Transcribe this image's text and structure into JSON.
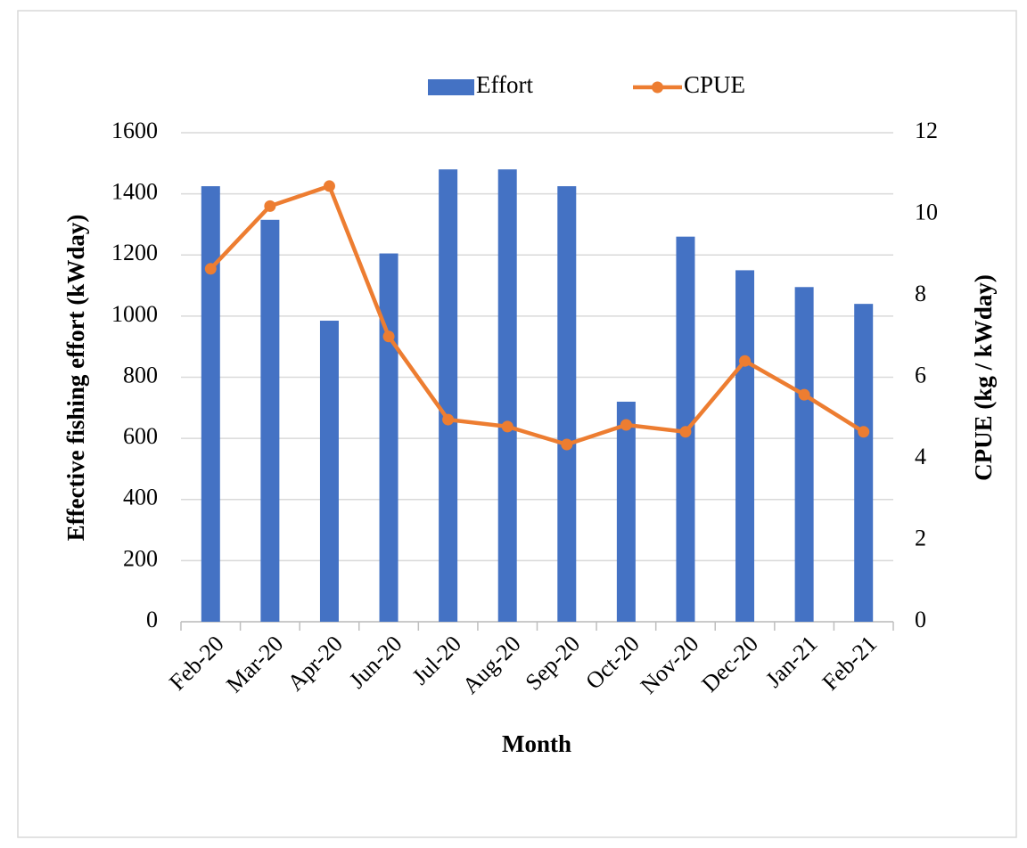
{
  "chart_data": {
    "type": "bar",
    "x_label": "Month",
    "y_label": "Effective fishing effort (kWday)",
    "y2_label": "CPUE (kg / kWday)",
    "categories": [
      "Feb-20",
      "Mar-20",
      "Apr-20",
      "Jun-20",
      "Jul-20",
      "Aug-20",
      "Sep-20",
      "Oct-20",
      "Nov-20",
      "Dec-20",
      "Jan-21",
      "Feb-21"
    ],
    "series": [
      {
        "name": "Effort",
        "type": "bar",
        "color": "#4472c4",
        "values": [
          1425,
          1315,
          985,
          1205,
          1480,
          1480,
          1425,
          720,
          1260,
          1150,
          1095,
          1040
        ]
      },
      {
        "name": "CPUE",
        "type": "line",
        "axis": "y2",
        "color": "#ed7d31",
        "values": [
          8.66,
          10.2,
          10.69,
          7.0,
          4.96,
          4.79,
          4.35,
          4.83,
          4.66,
          6.4,
          5.57,
          4.66
        ]
      }
    ],
    "ylim": [
      0,
      1600
    ],
    "yticks": [
      0,
      200,
      400,
      600,
      800,
      1000,
      1200,
      1400,
      1600
    ],
    "y2lim": [
      0,
      12
    ],
    "y2ticks": [
      0,
      2,
      4,
      6,
      8,
      10,
      12
    ],
    "grid": true,
    "legend": "top"
  }
}
